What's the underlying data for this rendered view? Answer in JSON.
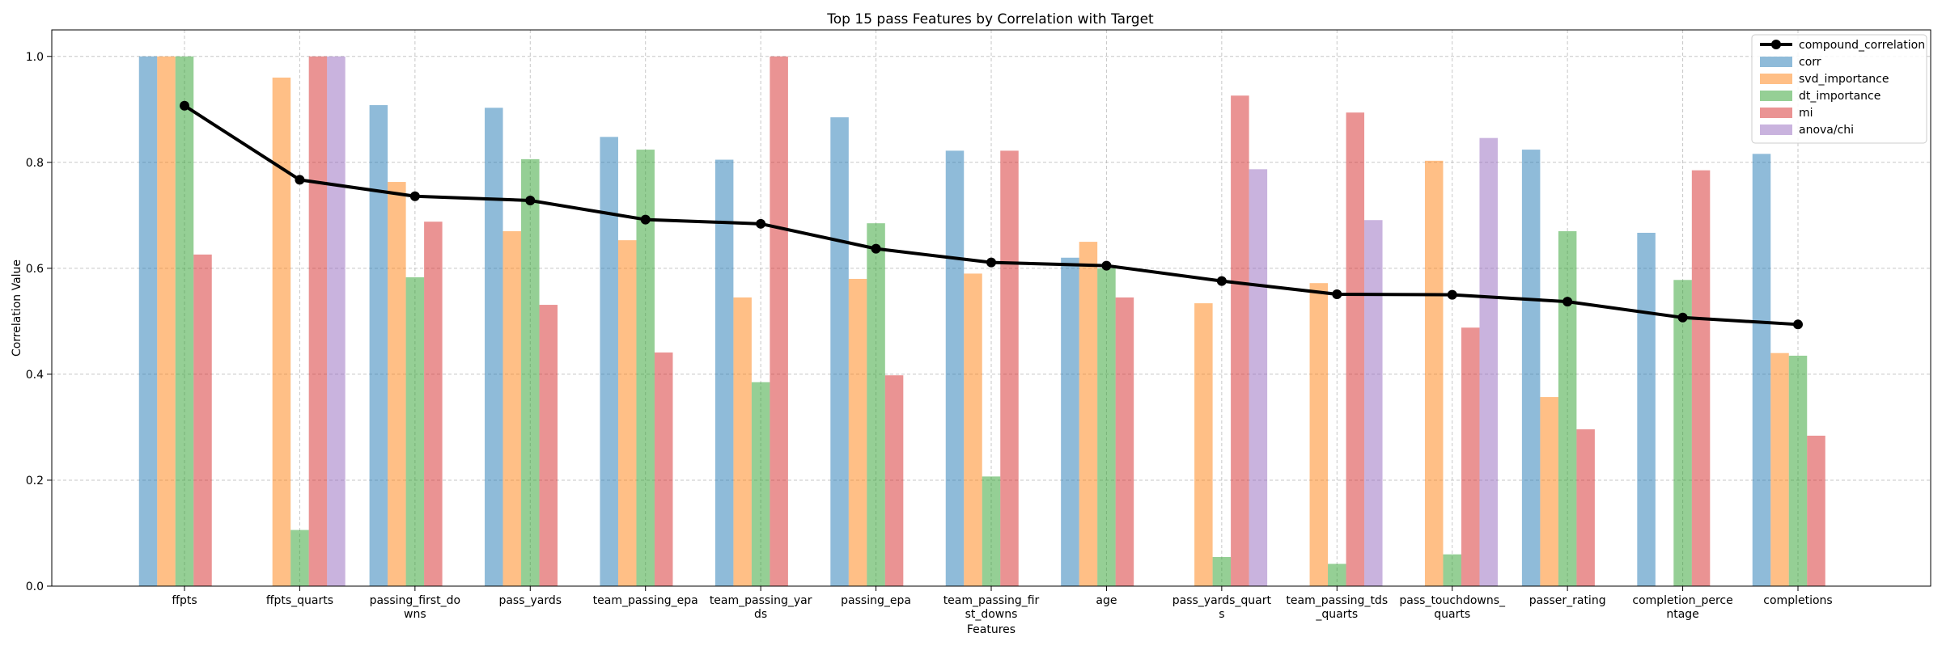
{
  "chart_data": {
    "type": "bar",
    "title": "Top 15 pass Features by Correlation with Target",
    "xlabel": "Features",
    "ylabel": "Correlation Value",
    "ylim": [
      0,
      1.05
    ],
    "yticks": [
      "0.0",
      "0.2",
      "0.4",
      "0.6",
      "0.8",
      "1.0"
    ],
    "grid": true,
    "legend_position": "top-right",
    "categories": [
      [
        "ffpts"
      ],
      [
        "ffpts_quarts"
      ],
      [
        "passing_first_do",
        "wns"
      ],
      [
        "pass_yards"
      ],
      [
        "team_passing_epa"
      ],
      [
        "team_passing_yar",
        "ds"
      ],
      [
        "passing_epa"
      ],
      [
        "team_passing_fir",
        "st_downs"
      ],
      [
        "age"
      ],
      [
        "pass_yards_quart",
        "s"
      ],
      [
        "team_passing_tds",
        "_quarts"
      ],
      [
        "pass_touchdowns_",
        "quarts"
      ],
      [
        "passer_rating"
      ],
      [
        "completion_perce",
        "ntage"
      ],
      [
        "completions"
      ]
    ],
    "series": [
      {
        "name": "corr",
        "color": "#1f77b4",
        "values": [
          1.0,
          null,
          0.908,
          0.903,
          0.848,
          0.805,
          0.885,
          0.822,
          0.62,
          null,
          null,
          null,
          0.824,
          0.667,
          0.816
        ]
      },
      {
        "name": "svd_importance",
        "color": "#ff7f0e",
        "values": [
          1.0,
          0.96,
          0.763,
          0.67,
          0.653,
          0.545,
          0.58,
          0.59,
          0.65,
          0.534,
          0.572,
          0.803,
          0.357,
          null,
          0.44
        ]
      },
      {
        "name": "dt_importance",
        "color": "#2ca02c",
        "values": [
          1.0,
          0.106,
          0.583,
          0.806,
          0.824,
          0.385,
          0.685,
          0.207,
          0.6,
          0.055,
          0.042,
          0.06,
          0.67,
          0.578,
          0.435
        ]
      },
      {
        "name": "mi",
        "color": "#d62728",
        "values": [
          0.626,
          1.0,
          0.688,
          0.531,
          0.441,
          1.0,
          0.398,
          0.822,
          0.545,
          0.926,
          0.894,
          0.488,
          0.296,
          0.785,
          0.284
        ]
      },
      {
        "name": "anova/chi",
        "color": "#9467bd",
        "values": [
          null,
          1.0,
          null,
          null,
          null,
          null,
          null,
          null,
          null,
          0.787,
          0.691,
          0.846,
          null,
          null,
          null
        ]
      }
    ],
    "line": {
      "name": "compound_correlation",
      "color": "#000000",
      "values": [
        0.907,
        0.767,
        0.736,
        0.728,
        0.692,
        0.684,
        0.637,
        0.611,
        0.605,
        0.576,
        0.551,
        0.55,
        0.537,
        0.507,
        0.494
      ]
    }
  }
}
